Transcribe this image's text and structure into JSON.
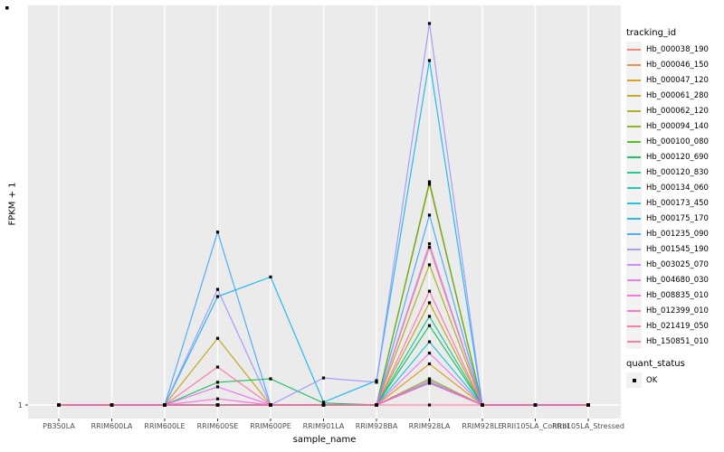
{
  "chart_data": {
    "type": "line",
    "title": "",
    "xlabel": "sample_name",
    "ylabel": "FPKM + 1",
    "y_scale": "log10",
    "y_ticks": [
      "1"
    ],
    "y_range_estimate": [
      1,
      10000
    ],
    "grid": "gray panel with white gridlines, one labeled y tick at 1",
    "legend_position": "right",
    "note": "y values are FPKM+1 estimated from a log axis where only the tick '1' is labeled",
    "categories": [
      "PB350LA",
      "RRIM600LA",
      "RRIM600LE",
      "RRIM600SE",
      "RRIM600PE",
      "RRIM901LA",
      "RRIM928BA",
      "RRIM928LA",
      "RRIM928LE",
      "RRII105LA_Control",
      "RRII105LA_Stressed"
    ],
    "series": [
      {
        "name": "Hb_000038_190",
        "color": "#F8766D",
        "values": [
          1,
          1,
          1,
          1,
          1,
          1,
          1,
          45,
          1,
          1,
          1
        ]
      },
      {
        "name": "Hb_000046_150",
        "color": "#EA8331",
        "values": [
          1,
          1,
          1,
          1,
          1,
          1,
          1,
          206,
          1,
          1,
          1
        ]
      },
      {
        "name": "Hb_000047_120",
        "color": "#D89000",
        "values": [
          1,
          1,
          1,
          1,
          1,
          1,
          1,
          2.7,
          1,
          1,
          1
        ]
      },
      {
        "name": "Hb_000061_280",
        "color": "#C09B00",
        "values": [
          1,
          1,
          1,
          5.0,
          1,
          1,
          1,
          11.8,
          1,
          1,
          1
        ]
      },
      {
        "name": "Hb_000062_120",
        "color": "#A3A500",
        "values": [
          1,
          1,
          1,
          1,
          1,
          1,
          1,
          29.5,
          1,
          1,
          1
        ]
      },
      {
        "name": "Hb_000094_140",
        "color": "#7CAE00",
        "values": [
          1,
          1,
          1,
          1,
          1,
          1,
          1,
          1.88,
          1,
          1,
          1
        ]
      },
      {
        "name": "Hb_000100_080",
        "color": "#39B600",
        "values": [
          1,
          1,
          1,
          1,
          1,
          1,
          1,
          219,
          1,
          1,
          1
        ]
      },
      {
        "name": "Hb_000120_690",
        "color": "#00BB4E",
        "values": [
          1,
          1,
          1,
          1.73,
          1.88,
          1.05,
          1,
          6.8,
          1,
          1,
          1
        ]
      },
      {
        "name": "Hb_000120_830",
        "color": "#00C087",
        "values": [
          1,
          1,
          1,
          1,
          1,
          1,
          1,
          8.5,
          1,
          1,
          1
        ]
      },
      {
        "name": "Hb_000134_060",
        "color": "#00C0B2",
        "values": [
          1,
          1,
          1,
          1,
          1,
          1,
          1,
          1.73,
          1,
          1,
          1
        ]
      },
      {
        "name": "Hb_000173_450",
        "color": "#00BCD8",
        "values": [
          1,
          1,
          1,
          1,
          1,
          1,
          1,
          4.6,
          1,
          1,
          1
        ]
      },
      {
        "name": "Hb_000175_170",
        "color": "#00B0F6",
        "values": [
          1,
          1,
          1,
          13.7,
          22,
          1.07,
          1.8,
          4090,
          1,
          1,
          1
        ]
      },
      {
        "name": "Hb_001235_090",
        "color": "#35A2FF",
        "values": [
          1,
          1,
          1,
          65,
          1,
          1,
          1,
          98,
          1,
          1,
          1
        ]
      },
      {
        "name": "Hb_001545_190",
        "color": "#9590FF",
        "values": [
          1,
          1,
          1,
          16.3,
          1,
          1.92,
          1.73,
          10000,
          1,
          1,
          1
        ]
      },
      {
        "name": "Hb_003025_070",
        "color": "#C77CFF",
        "values": [
          1,
          1,
          1,
          1,
          1,
          1,
          1,
          49,
          1,
          1,
          1
        ]
      },
      {
        "name": "Hb_004680_030",
        "color": "#E76BF3",
        "values": [
          1,
          1,
          1,
          1.55,
          1,
          1,
          1,
          3.5,
          1,
          1,
          1
        ]
      },
      {
        "name": "Hb_008835_010",
        "color": "#FA62DB",
        "values": [
          1,
          1,
          1,
          1.16,
          1,
          1,
          1,
          1.8,
          1,
          1,
          1
        ]
      },
      {
        "name": "Hb_012399_010",
        "color": "#FF61C3",
        "values": [
          1,
          1,
          1,
          1,
          1,
          1,
          1,
          1.69,
          1,
          1,
          1
        ]
      },
      {
        "name": "Hb_021419_050",
        "color": "#FF67A4",
        "values": [
          1,
          1,
          1,
          2.5,
          1,
          1,
          1,
          15.6,
          1,
          1,
          1
        ]
      },
      {
        "name": "Hb_150851_010",
        "color": "#FF6C90",
        "values": [
          1,
          1,
          1,
          1,
          1,
          1,
          1,
          1,
          1,
          1,
          1
        ]
      }
    ],
    "point_marker": {
      "shape": "square",
      "color": "#000000"
    }
  },
  "legend": {
    "tracking_title": "tracking_id",
    "quant_title": "quant_status",
    "quant_ok_label": "OK"
  },
  "style": {
    "panel_bg": "#EBEBEB",
    "grid_color": "#FFFFFF",
    "tick_color": "#333333",
    "axis_text_color": "#4D4D4D",
    "legend_key_bg": "#F2F2F2"
  }
}
